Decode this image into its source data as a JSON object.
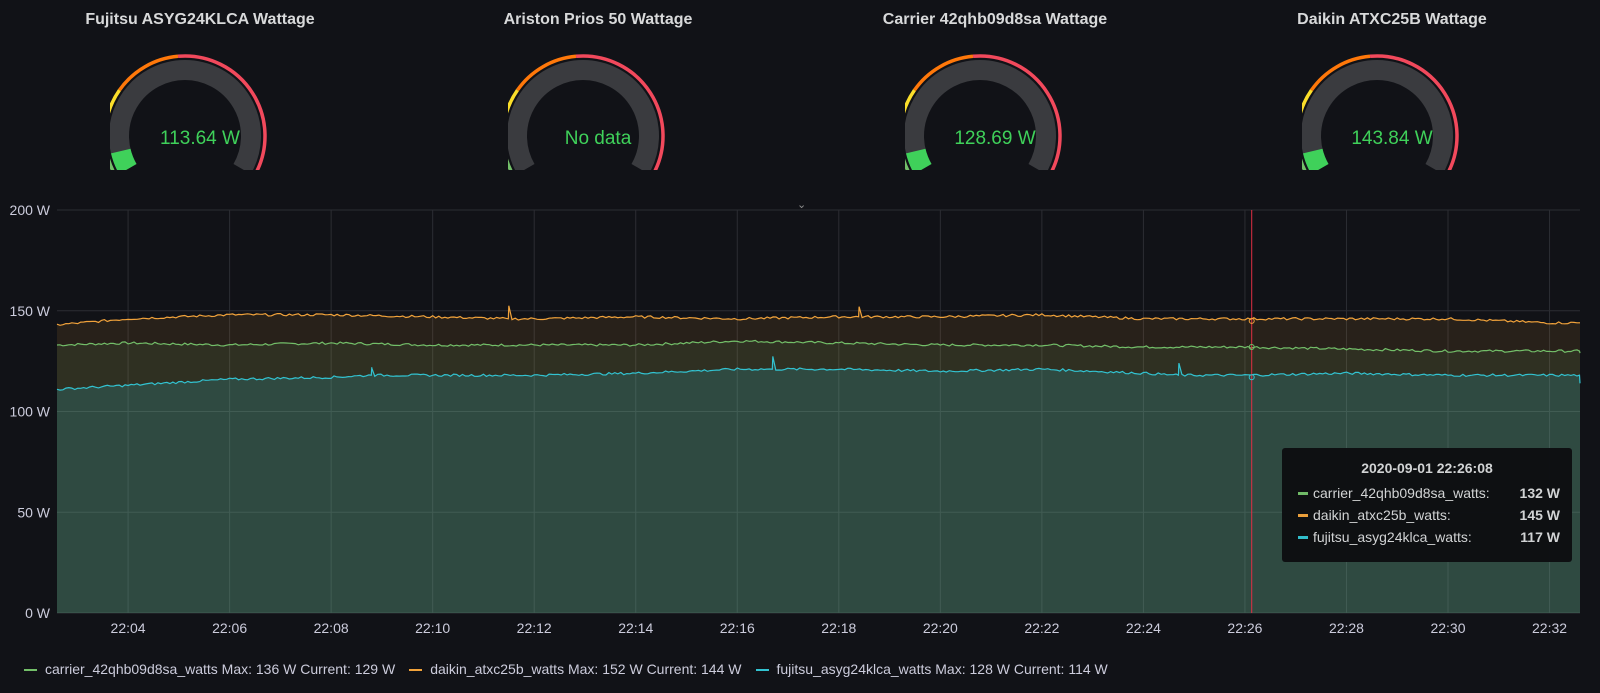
{
  "gauges": [
    {
      "title": "Fujitsu ASYG24KLCA Wattage",
      "value": "113.64 W",
      "fill": 0.07
    },
    {
      "title": "Ariston Prios 50 Wattage",
      "value": "No data",
      "fill": 0
    },
    {
      "title": "Carrier 42qhb09d8sa Wattage",
      "value": "128.69 W",
      "fill": 0.07
    },
    {
      "title": "Daikin ATXC25B Wattage",
      "value": "143.84 W",
      "fill": 0.07
    }
  ],
  "colors": {
    "carrier": "#73bf69",
    "daikin": "#f2a33b",
    "fujitsu": "#32c3d1",
    "threshold_red": "#f2495c",
    "threshold_orange": "#ff780a",
    "threshold_yellow": "#fade2a",
    "threshold_green": "#73bf69",
    "gauge_value": "#3fd15a",
    "crosshair": "#e02f44"
  },
  "chart_data": {
    "type": "line",
    "ylim": [
      0,
      200
    ],
    "y_ticks": [
      "0 W",
      "50 W",
      "100 W",
      "150 W",
      "200 W"
    ],
    "x_ticks": [
      "22:04",
      "22:06",
      "22:08",
      "22:10",
      "22:12",
      "22:14",
      "22:16",
      "22:18",
      "22:20",
      "22:22",
      "22:24",
      "22:26",
      "22:28",
      "22:30",
      "22:32"
    ],
    "series": [
      {
        "name": "carrier_42qhb09d8sa_watts",
        "key": "carrier",
        "max": 136,
        "current": 129,
        "x": [
          "22:02:36",
          "22:04",
          "22:06",
          "22:08",
          "22:10",
          "22:12",
          "22:14",
          "22:16",
          "22:18",
          "22:20",
          "22:22",
          "22:24",
          "22:26",
          "22:28",
          "22:30",
          "22:32",
          "22:32:36"
        ],
        "y": [
          133,
          134,
          133,
          134,
          133,
          133,
          133,
          135,
          134,
          133,
          133,
          132,
          132,
          131,
          130,
          130,
          129
        ]
      },
      {
        "name": "daikin_atxc25b_watts",
        "key": "daikin",
        "max": 152,
        "current": 144,
        "x": [
          "22:02:36",
          "22:04",
          "22:06",
          "22:08",
          "22:10",
          "22:11:30",
          "22:12",
          "22:14",
          "22:16",
          "22:18",
          "22:18:24",
          "22:20",
          "22:22",
          "22:24",
          "22:26",
          "22:28",
          "22:30",
          "22:32",
          "22:32:36"
        ],
        "y": [
          143,
          146,
          148,
          148,
          147,
          152,
          146,
          147,
          146,
          147,
          152,
          147,
          148,
          146,
          146,
          146,
          146,
          144,
          144
        ]
      },
      {
        "name": "fujitsu_asyg24klca_watts",
        "key": "fujitsu",
        "max": 128,
        "current": 114,
        "x": [
          "22:02:36",
          "22:04",
          "22:06",
          "22:08",
          "22:08:48",
          "22:10",
          "22:12",
          "22:14",
          "22:16",
          "22:16:42",
          "22:18",
          "22:20",
          "22:22",
          "22:24",
          "22:24:42",
          "22:26",
          "22:28",
          "22:30",
          "22:32",
          "22:32:36"
        ],
        "y": [
          111,
          113,
          116,
          117,
          122,
          118,
          118,
          119,
          121,
          127,
          121,
          120,
          121,
          119,
          124,
          118,
          119,
          118,
          118,
          114
        ]
      }
    ],
    "hover": {
      "time": "2020-09-01 22:26:08",
      "rows": [
        {
          "name": "carrier_42qhb09d8sa_watts:",
          "value": "132 W",
          "key": "carrier"
        },
        {
          "name": "daikin_atxc25b_watts:",
          "value": "145 W",
          "key": "daikin"
        },
        {
          "name": "fujitsu_asyg24klca_watts:",
          "value": "117 W",
          "key": "fujitsu"
        }
      ]
    }
  },
  "legend": [
    {
      "name": "carrier_42qhb09d8sa_watts",
      "max": "Max: 136 W",
      "current": "Current: 129 W",
      "key": "carrier"
    },
    {
      "name": "daikin_atxc25b_watts",
      "max": "Max: 152 W",
      "current": "Current: 144 W",
      "key": "daikin"
    },
    {
      "name": "fujitsu_asyg24klca_watts",
      "max": "Max: 128 W",
      "current": "Current: 114 W",
      "key": "fujitsu"
    }
  ]
}
